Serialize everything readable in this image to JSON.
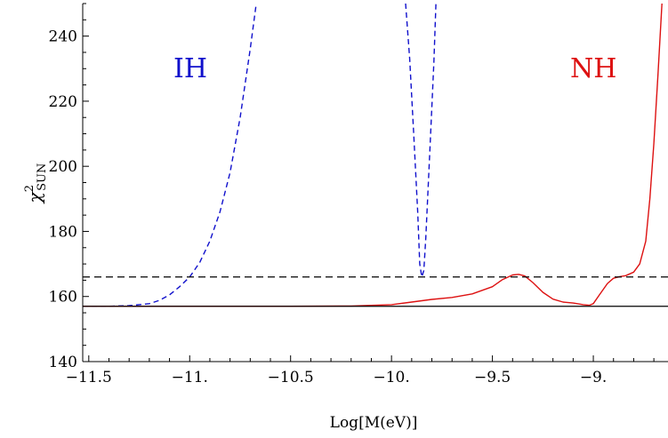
{
  "chart_data": {
    "type": "line",
    "xlabel": "Log[M(eV)]",
    "ylabel": {
      "base": "χ",
      "superscript": "2",
      "subscript": "SUN"
    },
    "xlim": [
      -11.53,
      -8.63
    ],
    "ylim": [
      140,
      250
    ],
    "x_ticks": [
      -11.5,
      -11,
      -10.5,
      -10,
      -9.5,
      -9
    ],
    "x_tick_labels": [
      "−11.5",
      "−11.",
      "−10.5",
      "−10.",
      "−9.5",
      "−9."
    ],
    "y_ticks": [
      140,
      160,
      180,
      200,
      220,
      240
    ],
    "y_tick_labels": [
      "140",
      "160",
      "180",
      "200",
      "220",
      "240"
    ],
    "grid": false,
    "reference_lines": [
      {
        "style": "solid",
        "color": "#000000",
        "y": 157
      },
      {
        "style": "dashed",
        "color": "#000000",
        "y": 166
      }
    ],
    "series": [
      {
        "name": "IH",
        "color": "#1010cc",
        "style": "dashed",
        "segments": [
          [
            [
              -11.53,
              157
            ],
            [
              -11.4,
              157
            ],
            [
              -11.3,
              157.2
            ],
            [
              -11.2,
              157.8
            ],
            [
              -11.15,
              158.8
            ],
            [
              -11.1,
              160.5
            ],
            [
              -11.05,
              163
            ],
            [
              -11,
              166
            ],
            [
              -10.95,
              170.5
            ],
            [
              -10.9,
              177
            ],
            [
              -10.85,
              186
            ],
            [
              -10.8,
              198
            ],
            [
              -10.75,
              215
            ],
            [
              -10.7,
              236
            ],
            [
              -10.67,
              250
            ]
          ],
          [
            [
              -9.93,
              250
            ],
            [
              -9.91,
              233
            ],
            [
              -9.89,
              210
            ],
            [
              -9.87,
              186
            ],
            [
              -9.86,
              170
            ],
            [
              -9.85,
              166
            ],
            [
              -9.84,
              168
            ],
            [
              -9.83,
              178
            ],
            [
              -9.81,
              205
            ],
            [
              -9.79,
              232
            ],
            [
              -9.78,
              250
            ]
          ]
        ]
      },
      {
        "name": "NH",
        "color": "#dd1111",
        "style": "solid",
        "segments": [
          [
            [
              -11.53,
              157
            ],
            [
              -11,
              157
            ],
            [
              -10.5,
              157
            ],
            [
              -10.2,
              157.1
            ],
            [
              -10,
              157.5
            ],
            [
              -9.9,
              158.3
            ],
            [
              -9.8,
              159.1
            ],
            [
              -9.7,
              159.7
            ],
            [
              -9.6,
              160.8
            ],
            [
              -9.5,
              163
            ],
            [
              -9.45,
              165.2
            ],
            [
              -9.4,
              166.6
            ],
            [
              -9.37,
              166.8
            ],
            [
              -9.34,
              166.3
            ],
            [
              -9.3,
              164.3
            ],
            [
              -9.25,
              161.3
            ],
            [
              -9.2,
              159.2
            ],
            [
              -9.15,
              158.3
            ],
            [
              -9.1,
              158
            ],
            [
              -9.05,
              157.5
            ],
            [
              -9.02,
              157.3
            ],
            [
              -9,
              157.8
            ],
            [
              -8.97,
              160.5
            ],
            [
              -8.93,
              164
            ],
            [
              -8.9,
              165.6
            ],
            [
              -8.87,
              166.1
            ],
            [
              -8.84,
              166.4
            ],
            [
              -8.8,
              167.5
            ],
            [
              -8.77,
              170
            ],
            [
              -8.74,
              177
            ],
            [
              -8.72,
              190
            ],
            [
              -8.7,
              207
            ],
            [
              -8.68,
              228
            ],
            [
              -8.66,
              250
            ]
          ]
        ]
      }
    ]
  }
}
